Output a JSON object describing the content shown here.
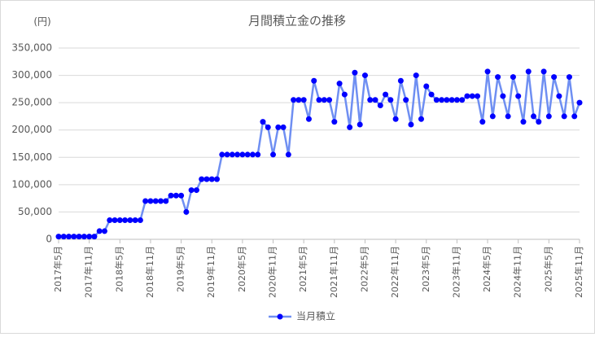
{
  "chart_data": {
    "type": "line",
    "title": "月間積立金の推移",
    "y_unit": "(円)",
    "categories": [
      "2017年5月",
      null,
      null,
      null,
      null,
      null,
      "2017年11月",
      null,
      null,
      null,
      null,
      null,
      "2018年5月",
      null,
      null,
      null,
      null,
      null,
      "2018年11月",
      null,
      null,
      null,
      null,
      null,
      "2019年5月",
      null,
      null,
      null,
      null,
      null,
      "2019年11月",
      null,
      null,
      null,
      null,
      null,
      "2020年5月",
      null,
      null,
      null,
      null,
      null,
      "2020年11月",
      null,
      null,
      null,
      null,
      null,
      "2021年5月",
      null,
      null,
      null,
      null,
      null,
      "2021年11月",
      null,
      null,
      null,
      null,
      null,
      "2022年5月",
      null,
      null,
      null,
      null,
      null,
      "2022年11月",
      null,
      null,
      null,
      null,
      null,
      "2023年5月",
      null,
      null,
      null,
      null,
      null,
      "2023年11月",
      null,
      null,
      null,
      null,
      null,
      "2024年5月",
      null,
      null,
      null,
      null,
      null,
      "2024年11月",
      null,
      null,
      null,
      null,
      null,
      "2025年5月",
      null,
      null,
      null,
      null,
      null,
      "2025年11月"
    ],
    "series": [
      {
        "name": "当月積立",
        "color": "#0000ff",
        "line_color": "#6f8ff2",
        "values": [
          5000,
          5000,
          5000,
          5000,
          5000,
          5000,
          5000,
          5000,
          15000,
          15000,
          35000,
          35000,
          35000,
          35000,
          35000,
          35000,
          35000,
          70000,
          70000,
          70000,
          70000,
          70000,
          80000,
          80000,
          80000,
          50000,
          90000,
          90000,
          110000,
          110000,
          110000,
          110000,
          155000,
          155000,
          155000,
          155000,
          155000,
          155000,
          155000,
          155000,
          215000,
          205000,
          155000,
          205000,
          205000,
          155000,
          255000,
          255000,
          255000,
          220000,
          290000,
          255000,
          255000,
          255000,
          215000,
          285000,
          265000,
          205000,
          305000,
          210000,
          300000,
          255000,
          255000,
          245000,
          265000,
          255000,
          220000,
          290000,
          255000,
          210000,
          300000,
          220000,
          280000,
          265000,
          255000,
          255000,
          255000,
          255000,
          255000,
          255000,
          262000,
          262000,
          262000,
          215000,
          307000,
          225000,
          297000,
          262000,
          225000,
          297000,
          262000,
          215000,
          307000,
          225000,
          215000,
          307000,
          225000,
          297000,
          262000,
          225000,
          297000,
          225000,
          250000
        ]
      }
    ],
    "ylim": [
      0,
      350000
    ],
    "yticks": [
      0,
      {
        "value": 50000,
        "label": "50,000"
      },
      {
        "value": 100000,
        "label": "100,000"
      },
      {
        "value": 150000,
        "label": "150,000"
      },
      {
        "value": 200000,
        "label": "200,000"
      },
      {
        "value": 250000,
        "label": "250,000"
      },
      {
        "value": 300000,
        "label": "300,000"
      },
      {
        "value": 350000,
        "label": "350,000"
      }
    ],
    "grid": true,
    "legend": "bottom"
  }
}
